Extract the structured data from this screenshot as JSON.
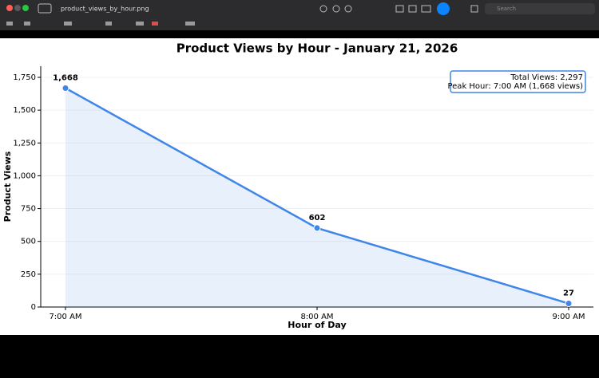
{
  "window": {
    "title": "product_views_by_hour.png",
    "search_placeholder": "Search"
  },
  "chart_data": {
    "type": "line",
    "title": "Product Views by Hour - January 21, 2026",
    "x_label": "Hour of Day",
    "y_label": "Product Views",
    "categories": [
      "7:00 AM",
      "8:00 AM",
      "9:00 AM"
    ],
    "values": [
      1668,
      602,
      27
    ],
    "value_labels": [
      "1,668",
      "602",
      "27"
    ],
    "color": "#3f86e8",
    "fill": true,
    "ylim": [
      0,
      1835
    ],
    "yticks": [
      0,
      250,
      500,
      750,
      {
        "value": 1000,
        "label": "1,000"
      },
      {
        "value": 1250,
        "label": "1,250"
      },
      {
        "value": 1500,
        "label": "1,500"
      },
      {
        "value": 1750,
        "label": "1,750"
      }
    ],
    "grid": true,
    "annotation": [
      "Total Views: 2,297",
      "Peak Hour: 7:00 AM (1,668 views)"
    ]
  }
}
